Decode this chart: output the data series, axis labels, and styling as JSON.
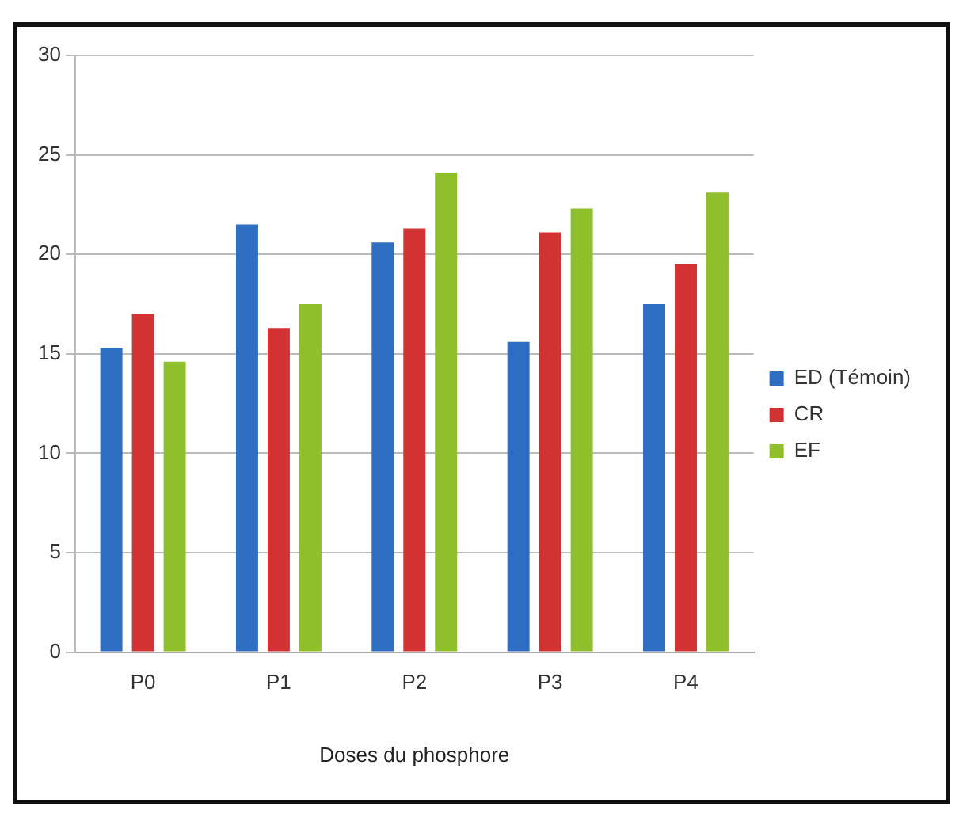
{
  "chart_data": {
    "type": "bar",
    "xlabel": "Doses du phosphore",
    "categories": [
      "P0",
      "P1",
      "P2",
      "P3",
      "P4"
    ],
    "series": [
      {
        "name": "ED (Témoin)",
        "color": "#2e6fc4",
        "values": [
          15.3,
          21.5,
          20.6,
          15.6,
          17.5
        ]
      },
      {
        "name": "CR",
        "color": "#d23232",
        "values": [
          17,
          16.3,
          21.3,
          21.1,
          19.5
        ]
      },
      {
        "name": "EF",
        "color": "#8fbf2a",
        "values": [
          14.6,
          17.5,
          24.1,
          22.3,
          23.1
        ]
      }
    ],
    "ylim": [
      0,
      30
    ],
    "yticks": [
      0,
      5,
      10,
      15,
      20,
      25,
      30
    ],
    "grid": "y",
    "legend": "right"
  }
}
